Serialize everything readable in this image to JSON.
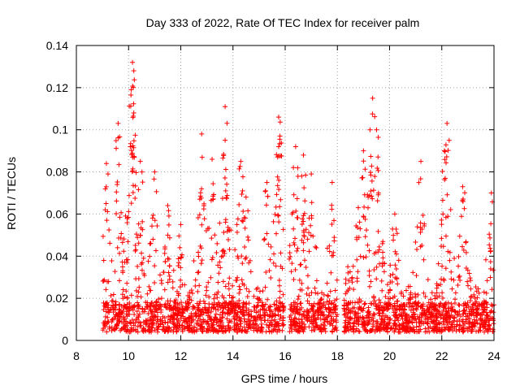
{
  "chart_data": {
    "type": "scatter",
    "title": "Day 333 of 2022, Rate Of TEC Index for receiver palm",
    "xlabel": "GPS time / hours",
    "ylabel": "ROTI / TECUs",
    "xlim": [
      8,
      24
    ],
    "ylim": [
      0,
      0.14
    ],
    "xticks": [
      "8",
      "10",
      "12",
      "14",
      "16",
      "18",
      "20",
      "22",
      "24"
    ],
    "yticks": [
      "0",
      "0.02",
      "0.04",
      "0.06",
      "0.08",
      "0.1",
      "0.12",
      "0.14"
    ],
    "grid": true,
    "marker": "+",
    "color": "#ff0000",
    "series": [
      {
        "name": "ROTI",
        "segments": [
          [
            9.0,
            15.95
          ],
          [
            16.15,
            18.0
          ],
          [
            18.25,
            24.0
          ]
        ],
        "peaks": [
          {
            "x": 9.15,
            "y": 0.084
          },
          {
            "x": 9.6,
            "y": 0.103
          },
          {
            "x": 10.15,
            "y": 0.132
          },
          {
            "x": 10.2,
            "y": 0.128
          },
          {
            "x": 10.1,
            "y": 0.119
          },
          {
            "x": 10.2,
            "y": 0.108
          },
          {
            "x": 10.45,
            "y": 0.085
          },
          {
            "x": 11.0,
            "y": 0.08
          },
          {
            "x": 11.5,
            "y": 0.064
          },
          {
            "x": 12.0,
            "y": 0.055
          },
          {
            "x": 12.8,
            "y": 0.098
          },
          {
            "x": 13.2,
            "y": 0.086
          },
          {
            "x": 13.7,
            "y": 0.111
          },
          {
            "x": 13.7,
            "y": 0.095
          },
          {
            "x": 14.3,
            "y": 0.085
          },
          {
            "x": 14.5,
            "y": 0.068
          },
          {
            "x": 15.3,
            "y": 0.075
          },
          {
            "x": 15.75,
            "y": 0.106
          },
          {
            "x": 15.8,
            "y": 0.097
          },
          {
            "x": 15.75,
            "y": 0.092
          },
          {
            "x": 16.4,
            "y": 0.092
          },
          {
            "x": 16.7,
            "y": 0.088
          },
          {
            "x": 17.0,
            "y": 0.079
          },
          {
            "x": 17.8,
            "y": 0.075
          },
          {
            "x": 18.4,
            "y": 0.035
          },
          {
            "x": 18.8,
            "y": 0.063
          },
          {
            "x": 19.0,
            "y": 0.09
          },
          {
            "x": 19.25,
            "y": 0.1
          },
          {
            "x": 19.35,
            "y": 0.115
          },
          {
            "x": 19.5,
            "y": 0.1
          },
          {
            "x": 20.2,
            "y": 0.06
          },
          {
            "x": 21.2,
            "y": 0.085
          },
          {
            "x": 22.2,
            "y": 0.103
          },
          {
            "x": 22.1,
            "y": 0.09
          },
          {
            "x": 22.8,
            "y": 0.073
          },
          {
            "x": 23.9,
            "y": 0.07
          }
        ]
      }
    ]
  }
}
